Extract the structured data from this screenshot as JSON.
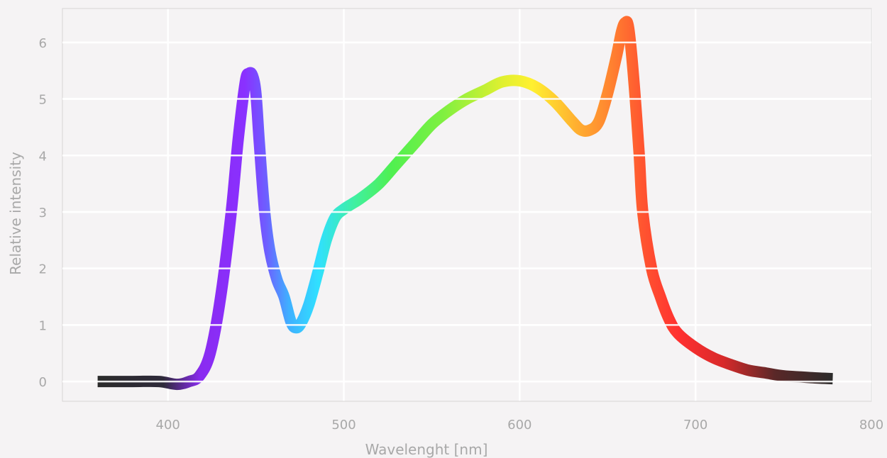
{
  "chart_data": {
    "type": "line",
    "xlabel": "Wavelenght [nm]",
    "ylabel": "Relative intensity",
    "xlim": [
      340,
      800
    ],
    "ylim": [
      -0.35,
      6.6
    ],
    "xticks": [
      400,
      500,
      600,
      700,
      800
    ],
    "yticks": [
      0,
      1,
      2,
      3,
      4,
      5,
      6
    ],
    "grid": true,
    "series": [
      {
        "x": [
          360,
          380,
          395,
          405,
          412,
          418,
          424,
          430,
          436,
          440,
          444,
          446,
          448,
          450,
          452,
          455,
          458,
          462,
          466,
          470,
          473,
          476,
          480,
          485,
          490,
          495,
          500,
          505,
          510,
          520,
          530,
          540,
          550,
          560,
          570,
          580,
          590,
          600,
          610,
          620,
          630,
          635,
          640,
          645,
          650,
          655,
          658,
          660,
          662,
          665,
          668,
          670,
          675,
          680,
          685,
          690,
          700,
          710,
          720,
          730,
          740,
          750,
          760,
          770,
          778
        ],
        "y": [
          0,
          0,
          0,
          -0.05,
          0,
          0.1,
          0.5,
          1.5,
          3.0,
          4.3,
          5.3,
          5.45,
          5.42,
          5.1,
          4.2,
          3.0,
          2.3,
          1.8,
          1.5,
          1.05,
          0.95,
          1.05,
          1.35,
          1.9,
          2.5,
          2.9,
          3.05,
          3.15,
          3.25,
          3.5,
          3.85,
          4.2,
          4.55,
          4.8,
          5.0,
          5.15,
          5.3,
          5.32,
          5.2,
          4.95,
          4.6,
          4.45,
          4.45,
          4.6,
          5.1,
          5.75,
          6.2,
          6.35,
          6.25,
          5.3,
          4.0,
          3.0,
          2.0,
          1.5,
          1.1,
          0.85,
          0.6,
          0.42,
          0.3,
          0.2,
          0.15,
          0.1,
          0.08,
          0.06,
          0.05
        ]
      }
    ]
  }
}
